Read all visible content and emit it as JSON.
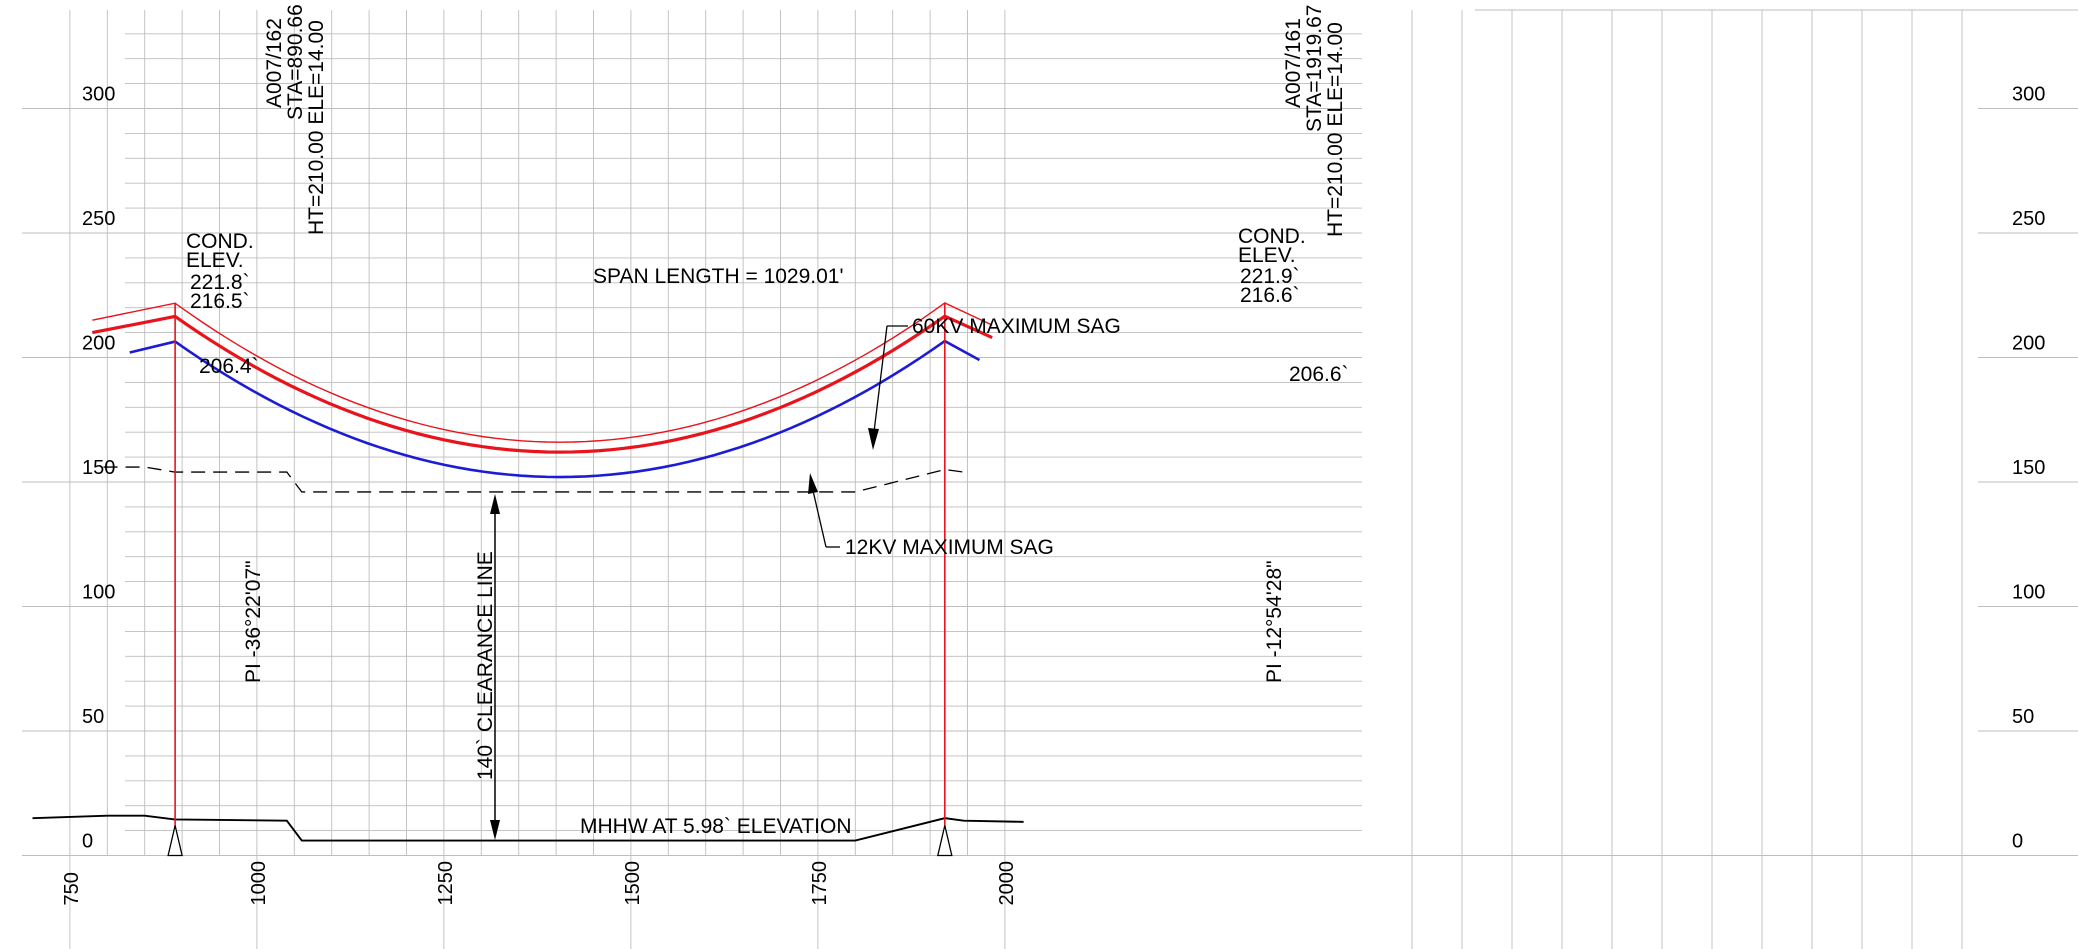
{
  "chart_data": {
    "type": "line",
    "title": "",
    "xlabel": "",
    "ylabel": "",
    "xlim": [
      700,
      2025
    ],
    "ylim": [
      0,
      340
    ],
    "x_ticks": [
      "750",
      "1000",
      "1250",
      "1500",
      "1750",
      "2000"
    ],
    "y_ticks": [
      "0",
      "50",
      "100",
      "150",
      "200",
      "250",
      "300"
    ],
    "grid": true,
    "series": [
      {
        "key": "cond-upper",
        "color": "#e8131b",
        "width": 1.4,
        "points": [
          [
            780,
            215
          ],
          [
            890.66,
            221.8
          ],
          [
            1405,
            166
          ],
          [
            1919.67,
            221.9
          ],
          [
            1983,
            213
          ]
        ]
      },
      {
        "key": "cond-60kv",
        "color": "#e8131b",
        "width": 3.2,
        "points": [
          [
            780,
            210
          ],
          [
            890.66,
            216.5
          ],
          [
            1405,
            162
          ],
          [
            1919.67,
            216.6
          ],
          [
            1983,
            208
          ]
        ]
      },
      {
        "key": "cond-12kv",
        "color": "#1c1cd4",
        "width": 2.6,
        "points": [
          [
            830,
            202
          ],
          [
            890.66,
            206.4
          ],
          [
            1405,
            152
          ],
          [
            1919.67,
            206.6
          ],
          [
            1966,
            199
          ]
        ]
      },
      {
        "key": "clearance",
        "color": "#000000",
        "width": 1.3,
        "dash": "14 8",
        "points": [
          [
            795,
            156
          ],
          [
            850,
            156
          ],
          [
            890,
            154
          ],
          [
            1040,
            154
          ],
          [
            1060,
            146
          ],
          [
            1800,
            146
          ],
          [
            1919.67,
            155
          ],
          [
            1945,
            154
          ]
        ]
      },
      {
        "key": "ground",
        "color": "#000000",
        "width": 1.9,
        "points": [
          [
            700,
            15
          ],
          [
            800,
            16
          ],
          [
            850,
            16
          ],
          [
            890,
            14.5
          ],
          [
            1040,
            14
          ],
          [
            1060,
            6
          ],
          [
            1800,
            6
          ],
          [
            1919.67,
            15
          ],
          [
            1945,
            14
          ],
          [
            2025,
            13.5
          ]
        ]
      }
    ],
    "structures": [
      {
        "key": "left",
        "station": 890.66,
        "id": "A007/162",
        "sta": "STA=890.66",
        "ht_ele": "HT=210.00 ELE=14.00",
        "cond_label": "COND.",
        "elev_label": "ELEV.",
        "elev_upper": "221.8`",
        "elev_mid": "216.5`",
        "elev_lower": "206.4`",
        "pi_angle": "PI -36°22'07\""
      },
      {
        "key": "right",
        "station": 1919.67,
        "id": "A007/161",
        "sta": "STA=1919.67",
        "ht_ele": "HT=210.00 ELE=14.00",
        "cond_label": "COND.",
        "elev_label": "ELEV.",
        "elev_upper": "221.9`",
        "elev_mid": "216.6`",
        "elev_lower": "206.6`",
        "pi_angle": "PI -12°54'28\""
      }
    ],
    "annotations": {
      "span_length": "SPAN LENGTH  = 1029.01'",
      "sag_60kv": "60KV MAXIMUM SAG",
      "sag_12kv": "12KV MAXIMUM SAG",
      "clearance": "140` CLEARANCE LINE",
      "mhhw": "MHHW AT 5.98` ELEVATION"
    },
    "colors": {
      "grid": "#bdbdbd",
      "structure": "#e8131b",
      "conductor_60kv": "#e8131b",
      "conductor_12kv": "#1c1cd4"
    }
  }
}
